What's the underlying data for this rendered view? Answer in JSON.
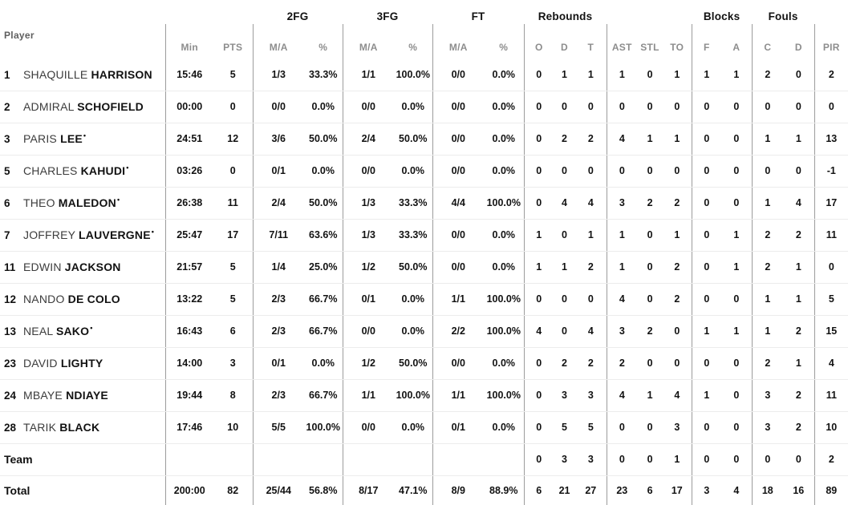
{
  "table": {
    "player_header": "Player",
    "groups": [
      {
        "label": "",
        "span": 1
      },
      {
        "label": "",
        "span": 2
      },
      {
        "label": "2FG",
        "span": 2
      },
      {
        "label": "3FG",
        "span": 2
      },
      {
        "label": "FT",
        "span": 2
      },
      {
        "label": "Rebounds",
        "span": 3
      },
      {
        "label": "",
        "span": 3
      },
      {
        "label": "Blocks",
        "span": 2
      },
      {
        "label": "Fouls",
        "span": 2
      },
      {
        "label": "",
        "span": 1
      }
    ],
    "sub_headers": [
      "Min",
      "PTS",
      "M/A",
      "%",
      "M/A",
      "%",
      "M/A",
      "%",
      "O",
      "D",
      "T",
      "AST",
      "STL",
      "TO",
      "F",
      "A",
      "C",
      "D",
      "PIR"
    ],
    "stat_keys": [
      "min",
      "pts",
      "2fg-ma",
      "2fg-pct",
      "3fg-ma",
      "3fg-pct",
      "ft-ma",
      "ft-pct",
      "reb-o",
      "reb-d",
      "reb-t",
      "ast",
      "stl",
      "to",
      "blk-f",
      "blk-a",
      "foul-c",
      "foul-d",
      "pir"
    ],
    "rows": [
      {
        "type": "player",
        "num": "1",
        "first": "SHAQUILLE",
        "last": "HARRISON",
        "starter": false,
        "stats": [
          "15:46",
          "5",
          "1/3",
          "33.3%",
          "1/1",
          "100.0%",
          "0/0",
          "0.0%",
          "0",
          "1",
          "1",
          "1",
          "0",
          "1",
          "1",
          "1",
          "2",
          "0",
          "2"
        ]
      },
      {
        "type": "player",
        "num": "2",
        "first": "ADMIRAL",
        "last": "SCHOFIELD",
        "starter": false,
        "stats": [
          "00:00",
          "0",
          "0/0",
          "0.0%",
          "0/0",
          "0.0%",
          "0/0",
          "0.0%",
          "0",
          "0",
          "0",
          "0",
          "0",
          "0",
          "0",
          "0",
          "0",
          "0",
          "0"
        ]
      },
      {
        "type": "player",
        "num": "3",
        "first": "PARIS",
        "last": "LEE",
        "starter": true,
        "stats": [
          "24:51",
          "12",
          "3/6",
          "50.0%",
          "2/4",
          "50.0%",
          "0/0",
          "0.0%",
          "0",
          "2",
          "2",
          "4",
          "1",
          "1",
          "0",
          "0",
          "1",
          "1",
          "13"
        ]
      },
      {
        "type": "player",
        "num": "5",
        "first": "CHARLES",
        "last": "KAHUDI",
        "starter": true,
        "stats": [
          "03:26",
          "0",
          "0/1",
          "0.0%",
          "0/0",
          "0.0%",
          "0/0",
          "0.0%",
          "0",
          "0",
          "0",
          "0",
          "0",
          "0",
          "0",
          "0",
          "0",
          "0",
          "-1"
        ]
      },
      {
        "type": "player",
        "num": "6",
        "first": "THEO",
        "last": "MALEDON",
        "starter": true,
        "stats": [
          "26:38",
          "11",
          "2/4",
          "50.0%",
          "1/3",
          "33.3%",
          "4/4",
          "100.0%",
          "0",
          "4",
          "4",
          "3",
          "2",
          "2",
          "0",
          "0",
          "1",
          "4",
          "17"
        ]
      },
      {
        "type": "player",
        "num": "7",
        "first": "JOFFREY",
        "last": "LAUVERGNE",
        "starter": true,
        "stats": [
          "25:47",
          "17",
          "7/11",
          "63.6%",
          "1/3",
          "33.3%",
          "0/0",
          "0.0%",
          "1",
          "0",
          "1",
          "1",
          "0",
          "1",
          "0",
          "1",
          "2",
          "2",
          "11"
        ]
      },
      {
        "type": "player",
        "num": "11",
        "first": "EDWIN",
        "last": "JACKSON",
        "starter": false,
        "stats": [
          "21:57",
          "5",
          "1/4",
          "25.0%",
          "1/2",
          "50.0%",
          "0/0",
          "0.0%",
          "1",
          "1",
          "2",
          "1",
          "0",
          "2",
          "0",
          "1",
          "2",
          "1",
          "0"
        ]
      },
      {
        "type": "player",
        "num": "12",
        "first": "NANDO",
        "last": "DE COLO",
        "starter": false,
        "stats": [
          "13:22",
          "5",
          "2/3",
          "66.7%",
          "0/1",
          "0.0%",
          "1/1",
          "100.0%",
          "0",
          "0",
          "0",
          "4",
          "0",
          "2",
          "0",
          "0",
          "1",
          "1",
          "5"
        ]
      },
      {
        "type": "player",
        "num": "13",
        "first": "NEAL",
        "last": "SAKO",
        "starter": true,
        "stats": [
          "16:43",
          "6",
          "2/3",
          "66.7%",
          "0/0",
          "0.0%",
          "2/2",
          "100.0%",
          "4",
          "0",
          "4",
          "3",
          "2",
          "0",
          "1",
          "1",
          "1",
          "2",
          "15"
        ]
      },
      {
        "type": "player",
        "num": "23",
        "first": "DAVID",
        "last": "LIGHTY",
        "starter": false,
        "stats": [
          "14:00",
          "3",
          "0/1",
          "0.0%",
          "1/2",
          "50.0%",
          "0/0",
          "0.0%",
          "0",
          "2",
          "2",
          "2",
          "0",
          "0",
          "0",
          "0",
          "2",
          "1",
          "4"
        ]
      },
      {
        "type": "player",
        "num": "24",
        "first": "MBAYE",
        "last": "NDIAYE",
        "starter": false,
        "stats": [
          "19:44",
          "8",
          "2/3",
          "66.7%",
          "1/1",
          "100.0%",
          "1/1",
          "100.0%",
          "0",
          "3",
          "3",
          "4",
          "1",
          "4",
          "1",
          "0",
          "3",
          "2",
          "11"
        ]
      },
      {
        "type": "player",
        "num": "28",
        "first": "TARIK",
        "last": "BLACK",
        "starter": false,
        "stats": [
          "17:46",
          "10",
          "5/5",
          "100.0%",
          "0/0",
          "0.0%",
          "0/1",
          "0.0%",
          "0",
          "5",
          "5",
          "0",
          "0",
          "3",
          "0",
          "0",
          "3",
          "2",
          "10"
        ]
      },
      {
        "type": "summary",
        "label": "Team",
        "stats": [
          "",
          "",
          "",
          "",
          "",
          "",
          "",
          "",
          "0",
          "3",
          "3",
          "0",
          "0",
          "1",
          "0",
          "0",
          "0",
          "0",
          "2"
        ]
      },
      {
        "type": "summary",
        "label": "Total",
        "total": true,
        "stats": [
          "200:00",
          "82",
          "25/44",
          "56.8%",
          "8/17",
          "47.1%",
          "8/9",
          "88.9%",
          "6",
          "21",
          "27",
          "23",
          "6",
          "17",
          "3",
          "4",
          "18",
          "16",
          "89"
        ]
      }
    ],
    "starter_marker": "•",
    "colors": {
      "text": "#121212",
      "muted_header": "#8d8d8d",
      "first_name": "#3c3c3c",
      "vertical_line": "#9c9c9c",
      "horizontal_line": "#ececec",
      "background": "#ffffff"
    }
  }
}
